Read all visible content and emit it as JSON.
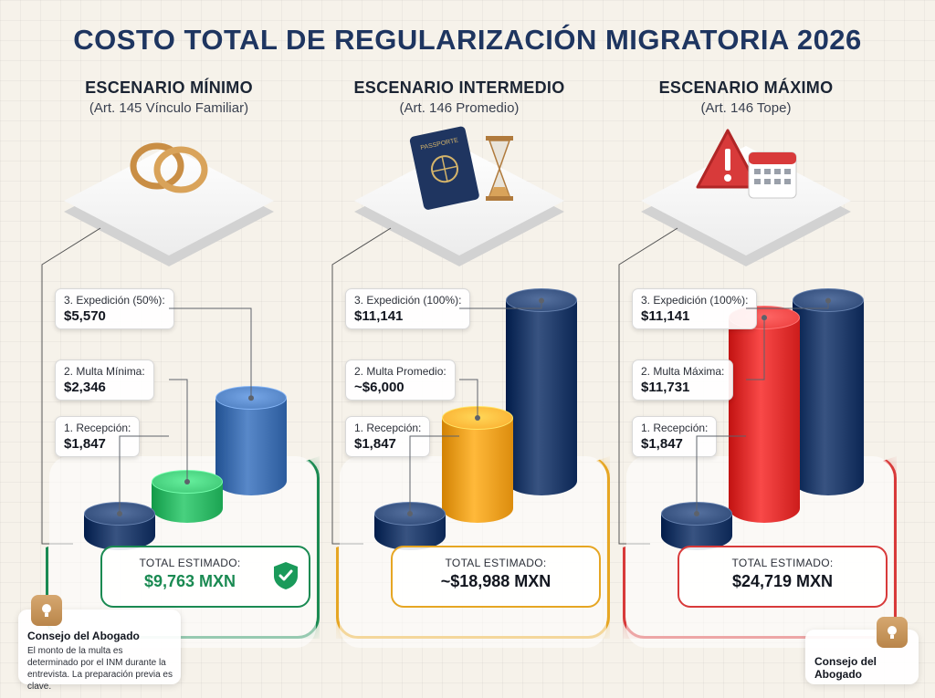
{
  "title": "COSTO TOTAL DE REGULARIZACIÓN MIGRATORIA 2026",
  "chart_data": {
    "type": "bar",
    "title": "COSTO TOTAL DE REGULARIZACIÓN MIGRATORIA 2026",
    "panels": [
      {
        "name": "ESCENARIO MÍNIMO",
        "subtitle": "(Art. 145 Vínculo Familiar)",
        "icon": "wedding-rings-icon",
        "bars": [
          {
            "label": "1. Recepción:",
            "value_text": "$1,847",
            "value": 1847,
            "color": "#1f3a68"
          },
          {
            "label": "2. Multa Mínima:",
            "value_text": "$2,346",
            "value": 2346,
            "color": "#2fb866"
          },
          {
            "label": "3. Expedición (50%):",
            "value_text": "$5,570",
            "value": 5570,
            "color": "#3f6fb0"
          }
        ],
        "total_label": "TOTAL ESTIMADO:",
        "total_value": "$9,763 MXN",
        "total": 9763,
        "accent": "#1a8a52",
        "check_icon": "shield-check-icon"
      },
      {
        "name": "ESCENARIO INTERMEDIO",
        "subtitle": "(Art. 146 Promedio)",
        "icon": "passport-hourglass-icon",
        "passport_text": "PASSPORTE",
        "bars": [
          {
            "label": "1. Recepción:",
            "value_text": "$1,847",
            "value": 1847,
            "color": "#1f3a68"
          },
          {
            "label": "2. Multa Promedio:",
            "value_text": "~$6,000",
            "value": 6000,
            "color": "#f0a021"
          },
          {
            "label": "3. Expedición (100%):",
            "value_text": "$11,141",
            "value": 11141,
            "color": "#1f3a68"
          }
        ],
        "total_label": "TOTAL ESTIMADO:",
        "total_value": "~$18,988 MXN",
        "total": 18988,
        "accent": "#e6a623"
      },
      {
        "name": "ESCENARIO MÁXIMO",
        "subtitle": "(Art. 146 Tope)",
        "icon": "warning-calendar-icon",
        "bars": [
          {
            "label": "1. Recepción:",
            "value_text": "$1,847",
            "value": 1847,
            "color": "#1f3a68"
          },
          {
            "label": "2. Multa Máxima:",
            "value_text": "$11,731",
            "value": 11731,
            "color": "#e0302f"
          },
          {
            "label": "3. Expedición (100%):",
            "value_text": "$11,141",
            "value": 11141,
            "color": "#1f3a68"
          }
        ],
        "total_label": "TOTAL ESTIMADO:",
        "total_value": "$24,719 MXN",
        "total": 24719,
        "accent": "#d83a3a"
      }
    ]
  },
  "tips": {
    "left": {
      "title": "Consejo del Abogado",
      "body": "El monto de la multa es determinado por el INM durante la entrevista. La preparación previa es clave."
    },
    "right": {
      "title": "Consejo del Abogado"
    }
  }
}
